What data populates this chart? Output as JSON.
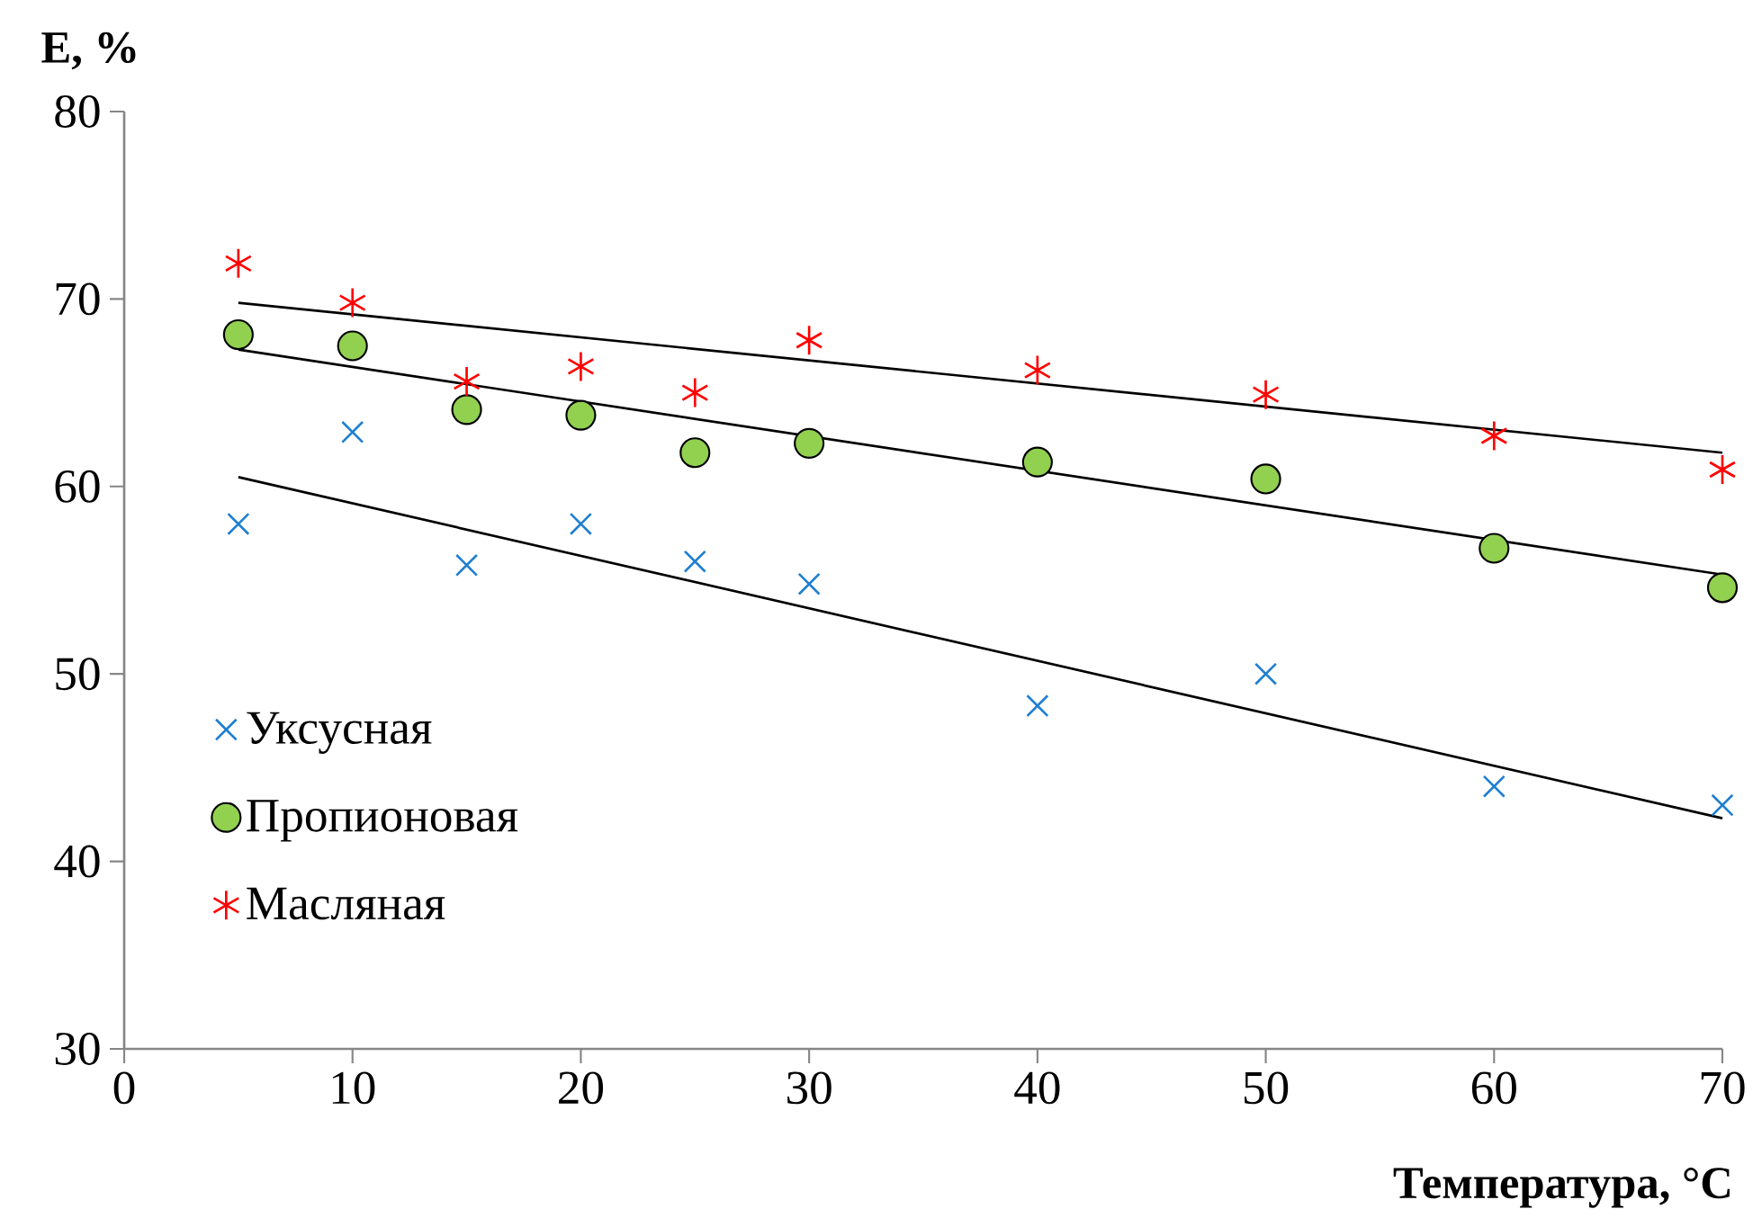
{
  "chart_data": {
    "type": "scatter",
    "xlabel": "Температура, °C",
    "ylabel": "E, %",
    "xlim": [
      0,
      70
    ],
    "ylim": [
      30,
      80
    ],
    "xticks": [
      0,
      10,
      20,
      30,
      40,
      50,
      60,
      70
    ],
    "yticks": [
      30,
      40,
      50,
      60,
      70,
      80
    ],
    "grid": false,
    "legend": "bottom left",
    "series": [
      {
        "name": "Уксусная",
        "color": "#1f7fd0",
        "marker": "cross",
        "x": [
          5,
          10,
          15,
          20,
          25,
          30,
          40,
          50,
          60,
          70
        ],
        "values": [
          58.0,
          62.9,
          55.8,
          58.0,
          56.0,
          54.8,
          48.3,
          50.0,
          44.0,
          43.0
        ]
      },
      {
        "name": "Пропионовая",
        "color": "#92d050",
        "marker": "circle",
        "x": [
          5,
          10,
          15,
          20,
          25,
          30,
          40,
          50,
          60,
          70
        ],
        "values": [
          68.1,
          67.5,
          64.1,
          63.8,
          61.8,
          62.3,
          61.3,
          60.4,
          56.7,
          54.6
        ]
      },
      {
        "name": "Масляная",
        "color": "#ff0000",
        "x": [
          5,
          10,
          15,
          20,
          25,
          30,
          40,
          50,
          60,
          70
        ],
        "values": [
          71.9,
          69.8,
          65.6,
          66.4,
          65.0,
          67.8,
          66.2,
          64.9,
          62.7,
          60.9
        ]
      },
      {
        "type": "line",
        "color": "#000000",
        "marker": "none",
        "x": [
          5,
          70
        ],
        "values": [
          60.5,
          42.3
        ]
      },
      {
        "type": "line",
        "color": "#000000",
        "marker": "none",
        "x": [
          5,
          70
        ],
        "values": [
          67.3,
          55.3
        ]
      },
      {
        "type": "line",
        "color": "#000000",
        "marker": "none",
        "x": [
          5,
          70
        ],
        "values": [
          69.8,
          61.8
        ]
      }
    ]
  }
}
